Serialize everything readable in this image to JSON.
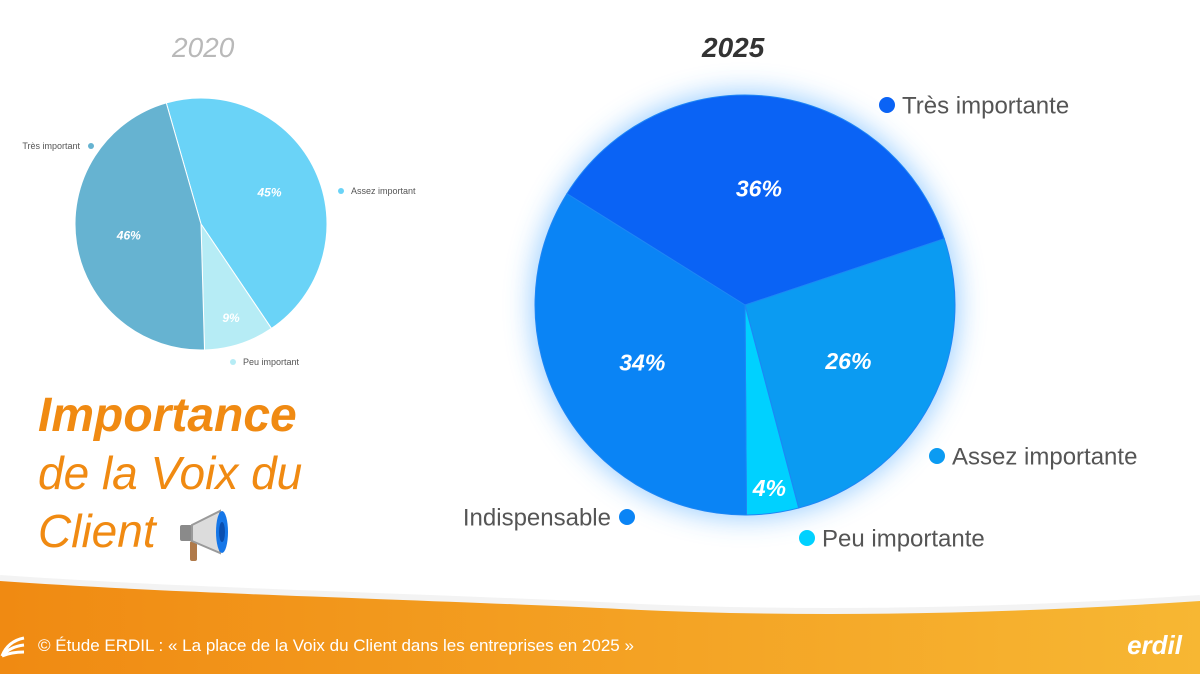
{
  "colors": {
    "orange": "#f08a12",
    "orange_light": "#f7b733",
    "pie2020": [
      "#66b3d1",
      "#6ad3f7",
      "#b6ecf5"
    ],
    "pie2025": [
      "#0a63f5",
      "#0b9bf2",
      "#00d1ff",
      "#0a84f5"
    ]
  },
  "title": {
    "main": "Importance",
    "sub1": "de la Voix du",
    "sub2": "Client",
    "icon": "megaphone-icon"
  },
  "footer": {
    "text": "© Étude ERDIL : « La place de la Voix du Client dans les entreprises en 2025 »",
    "logo": "erdil"
  },
  "chart_data": [
    {
      "type": "pie",
      "title": "2020",
      "categories": [
        "Très important",
        "Assez important",
        "Peu important"
      ],
      "values": [
        46,
        45,
        9
      ],
      "labels": [
        "46%",
        "45%",
        "9%"
      ]
    },
    {
      "type": "pie",
      "title": "2025",
      "categories": [
        "Très importante",
        "Assez importante",
        "Peu importante",
        "Indispensable"
      ],
      "values": [
        36,
        26,
        4,
        34
      ],
      "labels": [
        "36%",
        "26%",
        "4%",
        "34%"
      ]
    }
  ]
}
